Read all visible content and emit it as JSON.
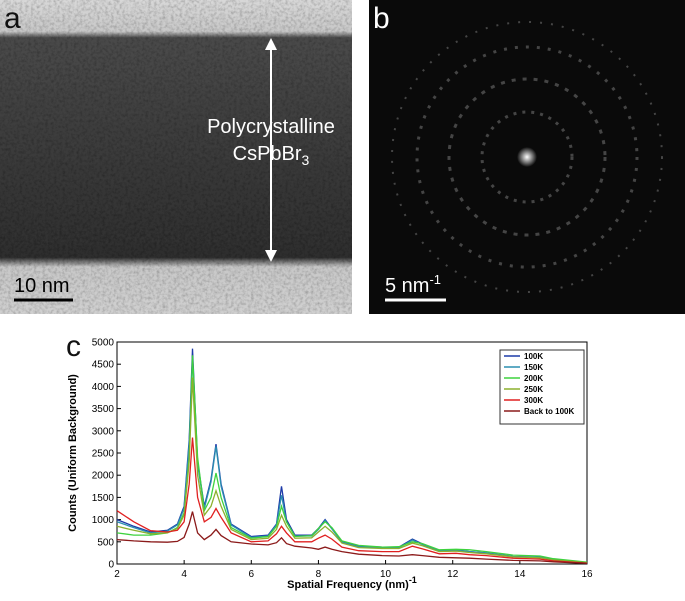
{
  "panel_a": {
    "label": "a",
    "annotation": "Polycrystalline",
    "formula": "CsPbBr",
    "formula_subscript": "3",
    "scale_bar": "10 nm"
  },
  "panel_b": {
    "label": "b",
    "scale_bar": "5 nm",
    "scale_bar_superscript": "-1"
  },
  "chart_data": {
    "type": "line",
    "label": "c",
    "x_label": "Spatial Frequency (nm)",
    "x_label_superscript": "-1",
    "y_label": "Counts (Uniform Background)",
    "x": [
      2,
      2.5,
      3,
      3.5,
      3.8,
      4.0,
      4.15,
      4.25,
      4.4,
      4.6,
      4.8,
      4.95,
      5.1,
      5.4,
      6.0,
      6.5,
      6.75,
      6.9,
      7.05,
      7.3,
      7.8,
      8.0,
      8.2,
      8.4,
      8.7,
      9.2,
      9.9,
      10.4,
      10.8,
      11.1,
      11.6,
      12.1,
      12.5,
      13.0,
      13.8,
      14.6,
      15.0,
      16
    ],
    "series": [
      {
        "name": "100K",
        "color": "#1c3aa8",
        "values": [
          1000,
          850,
          720,
          760,
          900,
          1300,
          2800,
          4850,
          2300,
          1300,
          1900,
          2700,
          1800,
          900,
          620,
          650,
          900,
          1750,
          1000,
          650,
          650,
          800,
          1000,
          800,
          500,
          400,
          380,
          380,
          560,
          450,
          300,
          320,
          280,
          250,
          170,
          150,
          100,
          30
        ]
      },
      {
        "name": "150K",
        "color": "#2a8fb0",
        "values": [
          950,
          820,
          700,
          740,
          880,
          1250,
          2700,
          4650,
          2250,
          1250,
          1850,
          2650,
          1750,
          880,
          600,
          630,
          880,
          1550,
          950,
          630,
          630,
          780,
          980,
          790,
          490,
          390,
          370,
          370,
          540,
          440,
          300,
          310,
          280,
          250,
          170,
          150,
          100,
          30
        ]
      },
      {
        "name": "200K",
        "color": "#3ed23e",
        "values": [
          700,
          650,
          650,
          700,
          820,
          1150,
          2400,
          4700,
          2400,
          1200,
          1500,
          2050,
          1500,
          820,
          580,
          620,
          850,
          1300,
          950,
          620,
          640,
          800,
          950,
          820,
          520,
          420,
          380,
          390,
          500,
          460,
          320,
          330,
          320,
          280,
          200,
          180,
          120,
          40
        ]
      },
      {
        "name": "250K",
        "color": "#8cb02e",
        "values": [
          850,
          760,
          680,
          700,
          800,
          1100,
          2300,
          4200,
          2000,
          1100,
          1300,
          1650,
          1300,
          780,
          550,
          580,
          780,
          1100,
          850,
          580,
          590,
          720,
          850,
          720,
          470,
          370,
          350,
          350,
          470,
          410,
          280,
          290,
          260,
          230,
          160,
          140,
          90,
          30
        ]
      },
      {
        "name": "300K",
        "color": "#e02020",
        "values": [
          1200,
          950,
          750,
          720,
          760,
          950,
          1800,
          2850,
          1500,
          950,
          1050,
          1250,
          1050,
          700,
          500,
          520,
          680,
          850,
          700,
          500,
          500,
          580,
          650,
          560,
          380,
          300,
          280,
          280,
          400,
          340,
          230,
          240,
          210,
          190,
          130,
          110,
          70,
          20
        ]
      },
      {
        "name": "Back to 100K",
        "color": "#8b1a1a",
        "values": [
          550,
          520,
          500,
          490,
          510,
          600,
          900,
          1180,
          700,
          550,
          650,
          780,
          640,
          500,
          450,
          430,
          480,
          590,
          460,
          400,
          360,
          330,
          380,
          330,
          280,
          220,
          190,
          180,
          210,
          190,
          150,
          140,
          130,
          110,
          80,
          70,
          50,
          15
        ]
      }
    ],
    "xlim": [
      2,
      16
    ],
    "ylim": [
      0,
      5000
    ],
    "xticks": [
      2,
      4,
      6,
      8,
      10,
      12,
      14,
      16
    ],
    "yticks": [
      0,
      500,
      1000,
      1500,
      2000,
      2500,
      3000,
      3500,
      4000,
      4500,
      5000
    ],
    "legend": "upper right"
  }
}
